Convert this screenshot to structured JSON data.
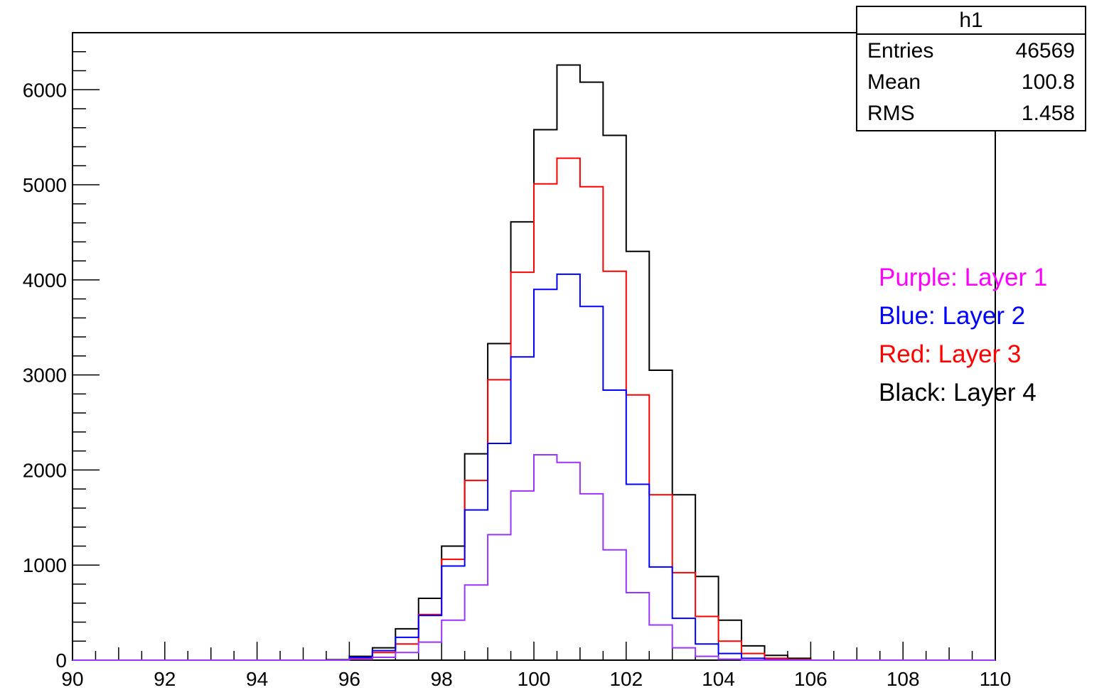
{
  "chart_data": {
    "type": "histogram",
    "xlim": [
      90,
      110
    ],
    "ylim": [
      0,
      6600
    ],
    "bin_width": 0.5,
    "x_ticks": [
      90,
      92,
      94,
      96,
      98,
      100,
      102,
      104,
      106,
      108,
      110
    ],
    "y_ticks": [
      0,
      1000,
      2000,
      3000,
      4000,
      5000,
      6000
    ],
    "series": [
      {
        "color": "#000000",
        "bins": [
          {
            "x0": 95.5,
            "value": 5
          },
          {
            "x0": 96.0,
            "value": 40
          },
          {
            "x0": 96.5,
            "value": 130
          },
          {
            "x0": 97.0,
            "value": 330
          },
          {
            "x0": 97.5,
            "value": 650
          },
          {
            "x0": 98.0,
            "value": 1200
          },
          {
            "x0": 98.5,
            "value": 2170
          },
          {
            "x0": 99.0,
            "value": 3330
          },
          {
            "x0": 99.5,
            "value": 4610
          },
          {
            "x0": 100.0,
            "value": 5580
          },
          {
            "x0": 100.5,
            "value": 6260
          },
          {
            "x0": 101.0,
            "value": 6080
          },
          {
            "x0": 101.5,
            "value": 5520
          },
          {
            "x0": 102.0,
            "value": 4300
          },
          {
            "x0": 102.5,
            "value": 3050
          },
          {
            "x0": 103.0,
            "value": 1740
          },
          {
            "x0": 103.5,
            "value": 880
          },
          {
            "x0": 104.0,
            "value": 420
          },
          {
            "x0": 104.5,
            "value": 150
          },
          {
            "x0": 105.0,
            "value": 50
          },
          {
            "x0": 105.5,
            "value": 20
          }
        ]
      },
      {
        "color": "#ff0000",
        "bins": [
          {
            "x0": 96.0,
            "value": 20
          },
          {
            "x0": 96.5,
            "value": 80
          },
          {
            "x0": 97.0,
            "value": 170
          },
          {
            "x0": 97.5,
            "value": 480
          },
          {
            "x0": 98.0,
            "value": 1060
          },
          {
            "x0": 98.5,
            "value": 1890
          },
          {
            "x0": 99.0,
            "value": 2950
          },
          {
            "x0": 99.5,
            "value": 4080
          },
          {
            "x0": 100.0,
            "value": 5010
          },
          {
            "x0": 100.5,
            "value": 5280
          },
          {
            "x0": 101.0,
            "value": 4980
          },
          {
            "x0": 101.5,
            "value": 4090
          },
          {
            "x0": 102.0,
            "value": 2790
          },
          {
            "x0": 102.5,
            "value": 1740
          },
          {
            "x0": 103.0,
            "value": 920
          },
          {
            "x0": 103.5,
            "value": 460
          },
          {
            "x0": 104.0,
            "value": 200
          },
          {
            "x0": 104.5,
            "value": 70
          },
          {
            "x0": 105.0,
            "value": 20
          },
          {
            "x0": 105.5,
            "value": 5
          }
        ]
      },
      {
        "color": "#0000ff",
        "bins": [
          {
            "x0": 96.0,
            "value": 30
          },
          {
            "x0": 96.5,
            "value": 100
          },
          {
            "x0": 97.0,
            "value": 240
          },
          {
            "x0": 97.5,
            "value": 470
          },
          {
            "x0": 98.0,
            "value": 990
          },
          {
            "x0": 98.5,
            "value": 1580
          },
          {
            "x0": 99.0,
            "value": 2280
          },
          {
            "x0": 99.5,
            "value": 3190
          },
          {
            "x0": 100.0,
            "value": 3900
          },
          {
            "x0": 100.5,
            "value": 4060
          },
          {
            "x0": 101.0,
            "value": 3720
          },
          {
            "x0": 101.5,
            "value": 2840
          },
          {
            "x0": 102.0,
            "value": 1850
          },
          {
            "x0": 102.5,
            "value": 980
          },
          {
            "x0": 103.0,
            "value": 440
          },
          {
            "x0": 103.5,
            "value": 170
          },
          {
            "x0": 104.0,
            "value": 70
          },
          {
            "x0": 104.5,
            "value": 20
          },
          {
            "x0": 105.0,
            "value": 5
          }
        ]
      },
      {
        "color": "#9933ff",
        "bins": [
          {
            "x0": 96.0,
            "value": 10
          },
          {
            "x0": 96.5,
            "value": 30
          },
          {
            "x0": 97.0,
            "value": 80
          },
          {
            "x0": 97.5,
            "value": 190
          },
          {
            "x0": 98.0,
            "value": 420
          },
          {
            "x0": 98.5,
            "value": 790
          },
          {
            "x0": 99.0,
            "value": 1320
          },
          {
            "x0": 99.5,
            "value": 1780
          },
          {
            "x0": 100.0,
            "value": 2160
          },
          {
            "x0": 100.5,
            "value": 2080
          },
          {
            "x0": 101.0,
            "value": 1750
          },
          {
            "x0": 101.5,
            "value": 1160
          },
          {
            "x0": 102.0,
            "value": 710
          },
          {
            "x0": 102.5,
            "value": 370
          },
          {
            "x0": 103.0,
            "value": 130
          },
          {
            "x0": 103.5,
            "value": 40
          },
          {
            "x0": 104.0,
            "value": 10
          }
        ]
      }
    ],
    "stats": {
      "title": "h1",
      "rows": [
        {
          "label": "Entries",
          "value": "46569"
        },
        {
          "label": "Mean",
          "value": "100.8"
        },
        {
          "label": "RMS",
          "value": "1.458"
        }
      ]
    },
    "legend_text": [
      {
        "text": "Purple: Layer 1",
        "color": "#ff00ff"
      },
      {
        "text": "Blue: Layer 2",
        "color": "#0000ff"
      },
      {
        "text": "Red: Layer 3",
        "color": "#ff0000"
      },
      {
        "text": "Black: Layer 4",
        "color": "#000000"
      }
    ]
  }
}
